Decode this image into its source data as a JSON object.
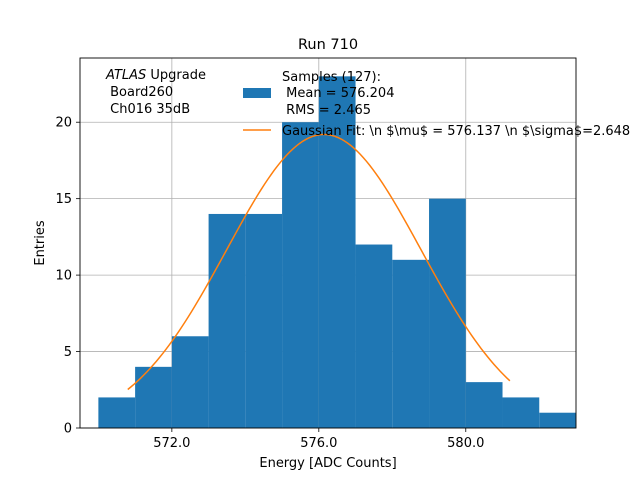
{
  "chart_data": {
    "type": "bar",
    "title": "Run 710",
    "xlabel": "Energy [ADC Counts]",
    "ylabel": "Entries",
    "xlim": [
      569.5,
      583.0
    ],
    "ylim": [
      0,
      24.2
    ],
    "grid": true,
    "xticks": [
      572.0,
      576.0,
      580.0
    ],
    "xtick_labels": [
      "572.0",
      "576.0",
      "580.0"
    ],
    "yticks": [
      0,
      5,
      10,
      15,
      20
    ],
    "ytick_labels": [
      "0",
      "5",
      "10",
      "15",
      "20"
    ],
    "histogram": {
      "name": "Samples (127)",
      "color": "#1f77b4",
      "bin_edges": [
        570.0,
        571.0,
        572.0,
        573.0,
        574.0,
        575.0,
        576.0,
        577.0,
        578.0,
        579.0,
        580.0,
        581.0,
        582.0,
        583.0
      ],
      "counts": [
        2,
        4,
        6,
        14,
        14,
        20,
        23,
        12,
        11,
        15,
        3,
        2,
        1
      ]
    },
    "fit": {
      "name": "Gaussian Fit",
      "color": "#ff7f0e",
      "mu": 576.137,
      "sigma": 2.648,
      "amplitude": 19.2,
      "x_range": [
        570.8,
        581.2
      ]
    },
    "legend": {
      "placement": "top-right",
      "samples_lines": [
        "Samples (127):",
        " Mean = 576.204",
        " RMS = 2.465"
      ],
      "fit_label": "Gaussian Fit: \\n $\\mu$ = 576.137 \\n $\\sigma$=2.648"
    },
    "annotation": {
      "atlas": "ATLAS",
      "upgrade": " Upgrade",
      "lines": [
        " Board260",
        " Ch016 35dB"
      ]
    }
  }
}
